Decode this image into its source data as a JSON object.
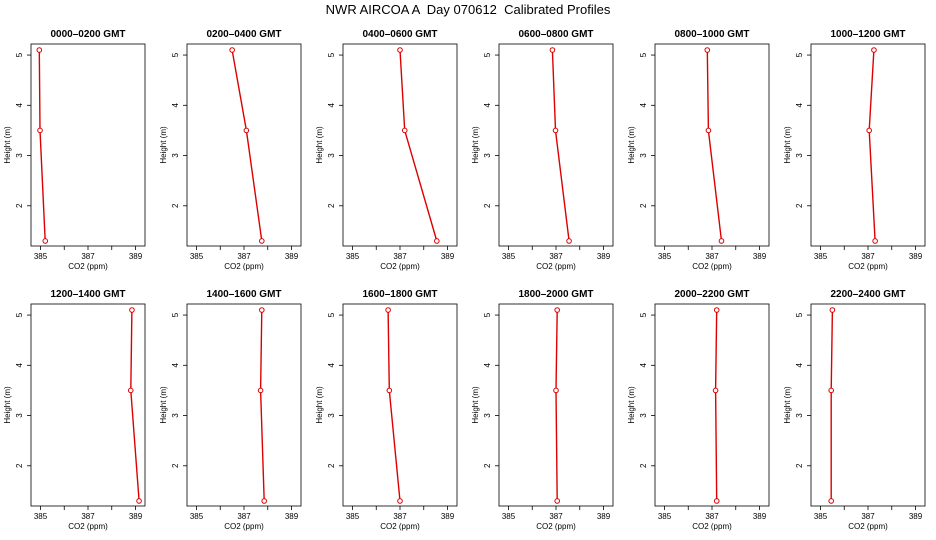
{
  "title": "NWR AIRCOA A  Day 070612  Calibrated Profiles",
  "colors": {
    "line": "#dd0000",
    "axis": "#000000"
  },
  "chart_data": {
    "type": "line",
    "xlabel": "CO2 (ppm)",
    "ylabel": "Height (m)",
    "xlim": [
      384.6,
      389.4
    ],
    "ylim": [
      1.2,
      5.22
    ],
    "xticks": [
      385,
      386,
      387,
      388,
      389
    ],
    "xtick_labels": [
      "385",
      "",
      "387",
      "",
      "389"
    ],
    "yticks": [
      2,
      3,
      4,
      5
    ],
    "ytick_labels": [
      "2",
      "3",
      "4",
      "5"
    ],
    "heights": [
      5.1,
      3.5,
      1.3
    ],
    "panels": [
      {
        "title": "0000–0200 GMT",
        "co2": [
          384.95,
          384.98,
          385.2
        ]
      },
      {
        "title": "0200–0400 GMT",
        "co2": [
          386.5,
          387.1,
          387.75
        ]
      },
      {
        "title": "0400–0600 GMT",
        "co2": [
          387.0,
          387.2,
          388.55
        ]
      },
      {
        "title": "0600–0800 GMT",
        "co2": [
          386.85,
          386.98,
          387.55
        ]
      },
      {
        "title": "0800–1000 GMT",
        "co2": [
          386.8,
          386.85,
          387.4
        ]
      },
      {
        "title": "1000–1200 GMT",
        "co2": [
          387.25,
          387.05,
          387.3
        ]
      },
      {
        "title": "1200–1400 GMT",
        "co2": [
          388.85,
          388.8,
          389.15
        ]
      },
      {
        "title": "1400–1600 GMT",
        "co2": [
          387.75,
          387.7,
          387.85
        ]
      },
      {
        "title": "1600–1800 GMT",
        "co2": [
          386.5,
          386.55,
          387.0
        ]
      },
      {
        "title": "1800–2000 GMT",
        "co2": [
          387.05,
          387.0,
          387.05
        ]
      },
      {
        "title": "2000–2200 GMT",
        "co2": [
          387.2,
          387.15,
          387.2
        ]
      },
      {
        "title": "2200–2400 GMT",
        "co2": [
          385.5,
          385.45,
          385.45
        ]
      }
    ]
  }
}
